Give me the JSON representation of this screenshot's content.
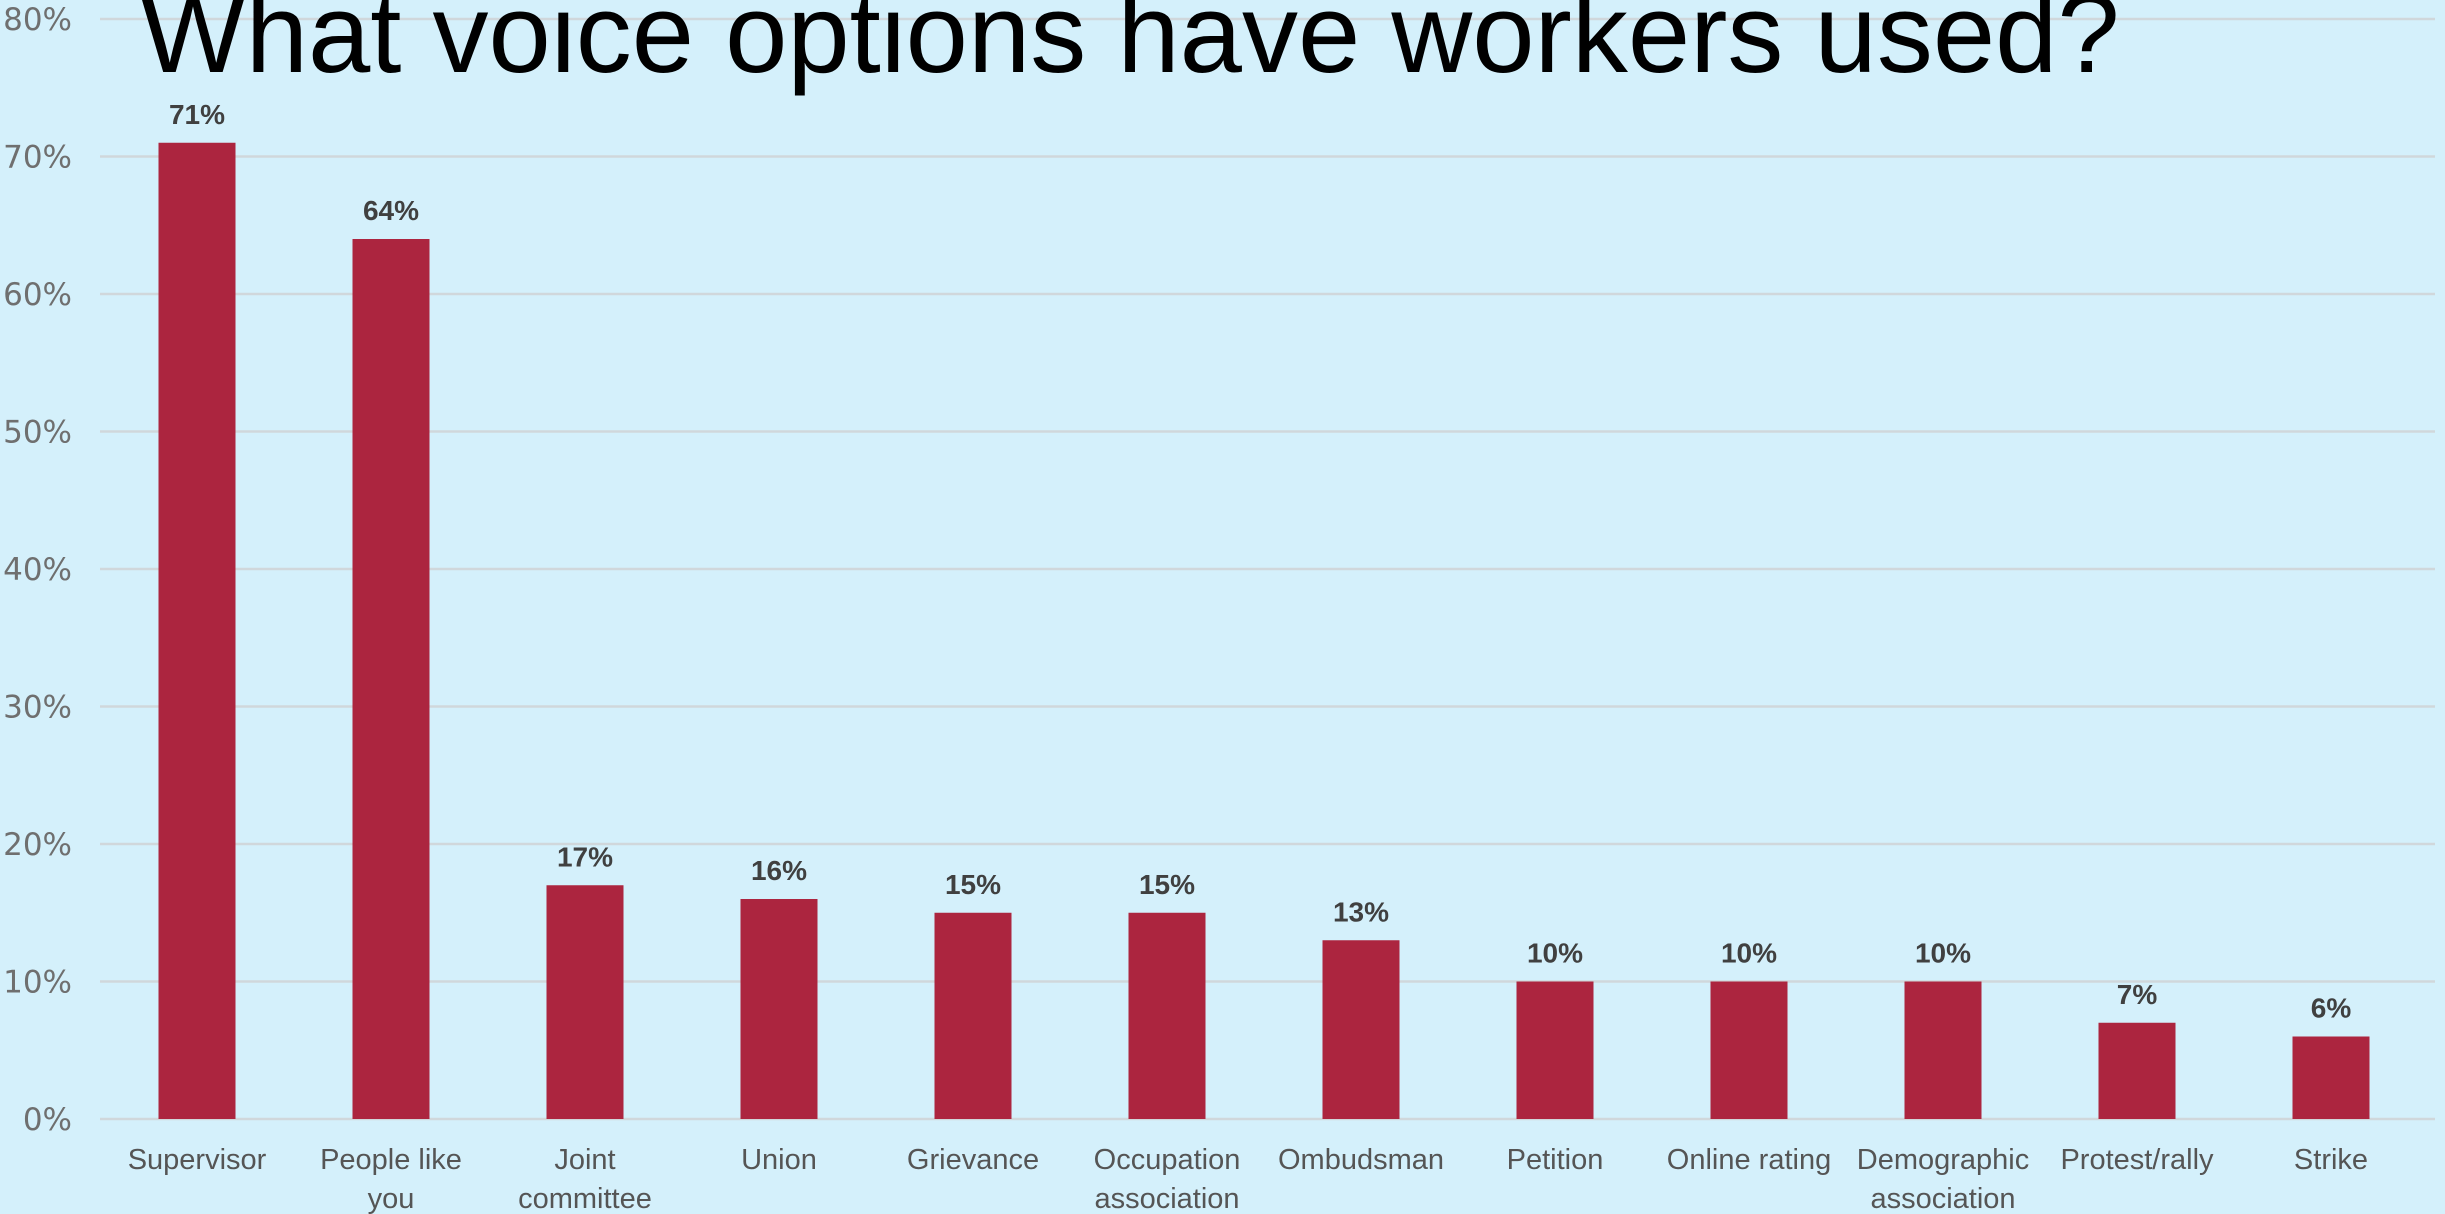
{
  "title": "What voice options have workers used?",
  "chart_data": {
    "type": "bar",
    "title": "What voice options have workers used?",
    "categories": [
      "Supervisor",
      "People like you",
      "Joint committee",
      "Union",
      "Grievance",
      "Occupation association",
      "Ombudsman",
      "Petition",
      "Online rating",
      "Demographic association",
      "Protest/rally",
      "Strike"
    ],
    "category_lines": [
      [
        "Supervisor"
      ],
      [
        "People like",
        "you"
      ],
      [
        "Joint",
        "committee"
      ],
      [
        "Union"
      ],
      [
        "Grievance"
      ],
      [
        "Occupation",
        "association"
      ],
      [
        "Ombudsman"
      ],
      [
        "Petition"
      ],
      [
        "Online rating"
      ],
      [
        "Demographic",
        "association"
      ],
      [
        "Protest/rally"
      ],
      [
        "Strike"
      ]
    ],
    "values": [
      71,
      64,
      17,
      16,
      15,
      15,
      13,
      10,
      10,
      10,
      7,
      6
    ],
    "data_labels": [
      "71%",
      "64%",
      "17%",
      "16%",
      "15%",
      "15%",
      "13%",
      "10%",
      "10%",
      "10%",
      "7%",
      "6%"
    ],
    "ylim": [
      0,
      80
    ],
    "yticks": [
      0,
      10,
      20,
      30,
      40,
      50,
      60,
      70,
      80
    ],
    "ytick_labels": [
      "0%",
      "10%",
      "20%",
      "30%",
      "40%",
      "50%",
      "60%",
      "70%",
      "80%"
    ],
    "xlabel": "",
    "ylabel": "",
    "grid": true,
    "legend": false,
    "bar_color": "#ac253f",
    "background_color": "#d4f0fb"
  }
}
